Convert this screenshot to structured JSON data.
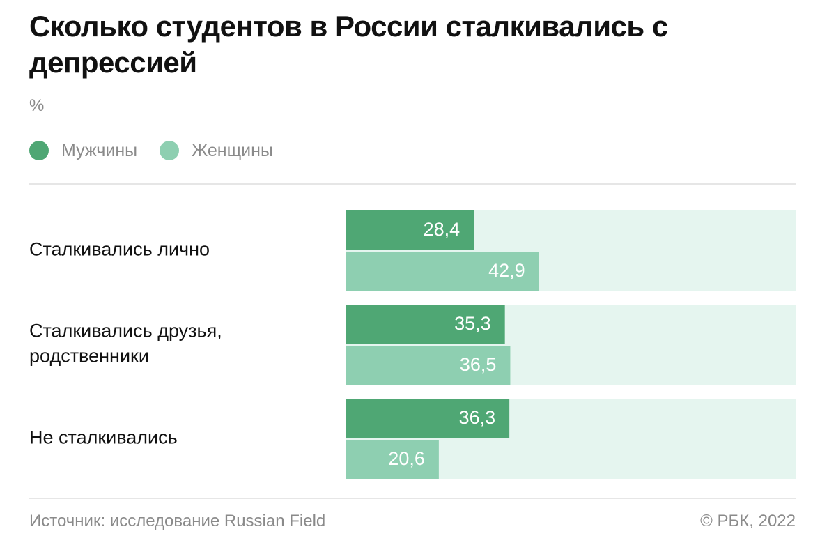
{
  "title": "Сколько студентов в России сталкивались с депрессией",
  "unit": "%",
  "legend": [
    {
      "label": "Мужчины",
      "color": "#4fa774"
    },
    {
      "label": "Женщины",
      "color": "#8ecfb1"
    }
  ],
  "colors": {
    "track": "#e5f5ef",
    "value_text": "#ffffff",
    "category_text": "#111111"
  },
  "chart_data": {
    "type": "bar",
    "orientation": "horizontal",
    "categories": [
      "Сталкивались лично",
      "Сталкивались друзья, родственники",
      "Не сталкивались"
    ],
    "series": [
      {
        "name": "Мужчины",
        "values": [
          28.4,
          35.3,
          36.3
        ],
        "labels": [
          "28,4",
          "35,3",
          "36,3"
        ]
      },
      {
        "name": "Женщины",
        "values": [
          42.9,
          36.5,
          20.6
        ],
        "labels": [
          "42,9",
          "36,5",
          "20,6"
        ]
      }
    ],
    "xlim": [
      0,
      100
    ],
    "grid": false,
    "legend_position": "top-left"
  },
  "footer": {
    "source": "Источник: исследование Russian Field",
    "copyright": "© РБК, 2022"
  }
}
